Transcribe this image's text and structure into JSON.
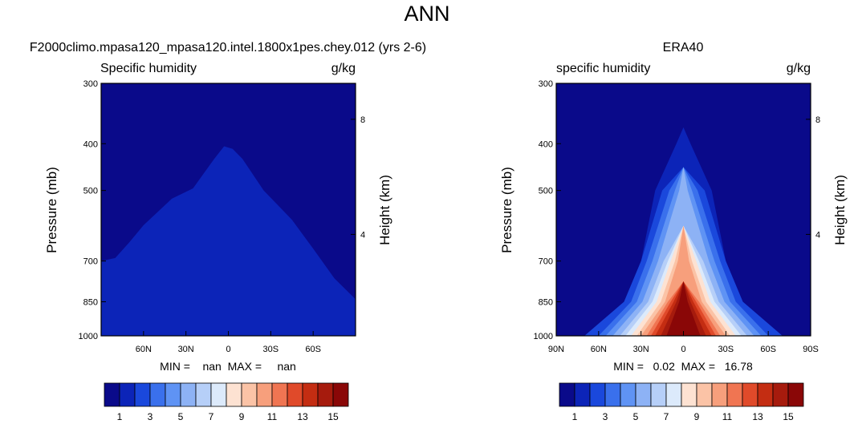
{
  "title": "ANN",
  "colors": {
    "levels": [
      "#0a0a8a",
      "#0c24b8",
      "#1a48dc",
      "#3a70ec",
      "#5f93f4",
      "#8db2f5",
      "#b6cff8",
      "#dceafb",
      "#fde2d2",
      "#fbc3a6",
      "#f79f7c",
      "#f07552",
      "#e04a2a",
      "#c42d12",
      "#a61b0d",
      "#8a0707"
    ]
  },
  "chart_data": [
    {
      "type": "contour",
      "title": "F2000climo.mpasa120_mpasa120.intel.1800x1pes.chey.012 (yrs 2-6)",
      "left_label": "Specific humidity",
      "right_label": "g/kg",
      "ylabel": "Pressure (mb)",
      "ylabel_right": "Height (km)",
      "yticks": [
        "300",
        "400",
        "500",
        "700",
        "850",
        "1000"
      ],
      "yticks_right": [
        "8",
        "4"
      ],
      "xticks": [
        "60N",
        "30N",
        "0",
        "30S",
        "60S"
      ],
      "xlim": [
        90,
        -90
      ],
      "ylim": [
        1000,
        300
      ],
      "stats": "MIN =    nan  MAX =     nan",
      "levels": [
        1,
        2,
        3,
        4,
        5,
        6,
        7,
        8,
        9,
        10,
        11,
        12,
        13,
        14,
        15
      ],
      "colorbar_labels": [
        "1",
        "3",
        "5",
        "7",
        "9",
        "11",
        "13",
        "15"
      ],
      "contours": [
        {
          "level": 1,
          "fill_color": "#0c24b8",
          "boundary": [
            [
              90,
              700
            ],
            [
              80,
              690
            ],
            [
              70,
              640
            ],
            [
              60,
              590
            ],
            [
              40,
              520
            ],
            [
              25,
              495
            ],
            [
              10,
              430
            ],
            [
              3,
              405
            ],
            [
              -3,
              410
            ],
            [
              -10,
              430
            ],
            [
              -25,
              500
            ],
            [
              -45,
              575
            ],
            [
              -60,
              660
            ],
            [
              -75,
              760
            ],
            [
              -90,
              840
            ]
          ]
        }
      ]
    },
    {
      "type": "contour",
      "title": "ERA40",
      "left_label": "specific humidity",
      "right_label": "g/kg",
      "ylabel": "Pressure (mb)",
      "ylabel_right": "Height (km)",
      "yticks": [
        "300",
        "400",
        "500",
        "700",
        "850",
        "1000"
      ],
      "yticks_right": [
        "8",
        "4"
      ],
      "xticks": [
        "90N",
        "60N",
        "30N",
        "0",
        "30S",
        "60S",
        "90S"
      ],
      "xlim": [
        90,
        -90
      ],
      "ylim": [
        1000,
        300
      ],
      "stats": "MIN =   0.02  MAX =   16.78",
      "min": 0.02,
      "max": 16.78,
      "levels": [
        1,
        2,
        3,
        4,
        5,
        6,
        7,
        8,
        9,
        10,
        11,
        12,
        13,
        14,
        15
      ],
      "colorbar_labels": [
        "1",
        "3",
        "5",
        "7",
        "9",
        "11",
        "13",
        "15"
      ],
      "contours": [
        {
          "level": 1,
          "half_width": [
            70,
            42,
            30,
            20,
            5
          ]
        },
        {
          "level": 2,
          "half_width": [
            70,
            42,
            30,
            15,
            0
          ]
        },
        {
          "level": 3,
          "half_width": [
            60,
            37,
            26,
            10,
            0
          ]
        },
        {
          "level": 4,
          "half_width": [
            55,
            33,
            22,
            6,
            0
          ]
        },
        {
          "level": 5,
          "half_width": [
            50,
            29,
            18,
            3,
            0
          ]
        },
        {
          "level": 6,
          "half_width": [
            45,
            25,
            14,
            0,
            0
          ]
        },
        {
          "level": 7,
          "half_width": [
            41,
            22,
            11,
            0,
            0
          ]
        },
        {
          "level": 8,
          "half_width": [
            37,
            19,
            9,
            0,
            0
          ]
        },
        {
          "level": 9,
          "half_width": [
            33,
            16,
            6,
            0,
            0
          ]
        },
        {
          "level": 10,
          "half_width": [
            30,
            13,
            4,
            0,
            0
          ]
        },
        {
          "level": 11,
          "half_width": [
            26,
            11,
            0,
            0,
            0
          ]
        },
        {
          "level": 12,
          "half_width": [
            23,
            9,
            0,
            0,
            0
          ]
        },
        {
          "level": 13,
          "half_width": [
            20,
            7,
            0,
            0,
            0
          ]
        },
        {
          "level": 14,
          "half_width": [
            16,
            5,
            0,
            0,
            0
          ]
        },
        {
          "level": 15,
          "half_width": [
            12,
            3,
            0,
            0,
            0
          ]
        }
      ],
      "contour_pressures": [
        1000,
        850,
        700,
        500,
        400
      ]
    }
  ]
}
